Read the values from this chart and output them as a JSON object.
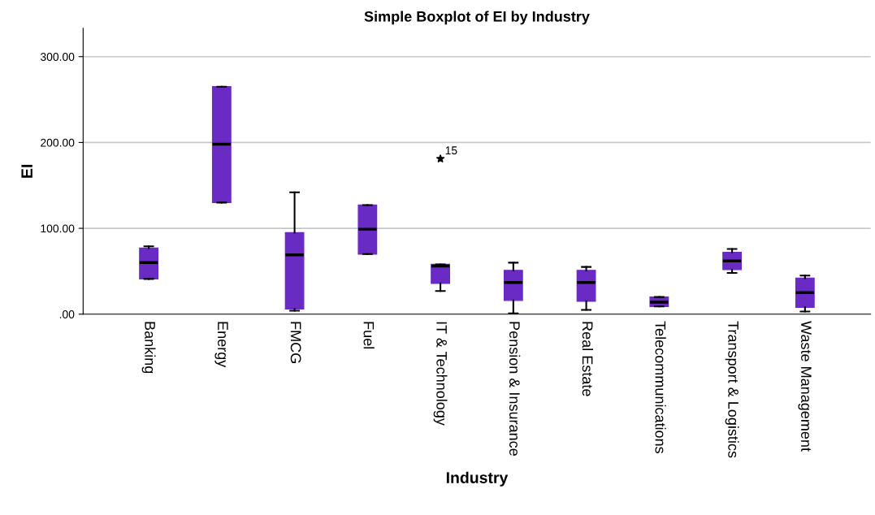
{
  "chart_data": {
    "type": "box",
    "title": "Simple Boxplot of EI by Industry",
    "xlabel": "Industry",
    "ylabel": "EI",
    "categories": [
      "Banking",
      "Energy",
      "FMCG",
      "Fuel",
      "IT & Technology",
      "Pension & Insurance",
      "Real Estate",
      "Telecommunications",
      "Transport & Logistics",
      "Waste Management"
    ],
    "boxes": [
      {
        "low": 41,
        "q1": 41,
        "median": 60,
        "q3": 77,
        "high": 79
      },
      {
        "low": 130,
        "q1": 130,
        "median": 198,
        "q3": 265,
        "high": 265
      },
      {
        "low": 4,
        "q1": 6,
        "median": 69,
        "q3": 95,
        "high": 142
      },
      {
        "low": 70,
        "q1": 70,
        "median": 99,
        "q3": 127,
        "high": 127
      },
      {
        "low": 27,
        "q1": 36,
        "median": 56,
        "q3": 58,
        "high": 58,
        "outliers": [
          181
        ]
      },
      {
        "low": 1,
        "q1": 16,
        "median": 37,
        "q3": 51,
        "high": 60
      },
      {
        "low": 5,
        "q1": 15,
        "median": 37,
        "q3": 51,
        "high": 55
      },
      {
        "low": 9,
        "q1": 9,
        "median": 14,
        "q3": 20,
        "high": 20
      },
      {
        "low": 48,
        "q1": 52,
        "median": 62,
        "q3": 72,
        "high": 76
      },
      {
        "low": 3,
        "q1": 8,
        "median": 25,
        "q3": 42,
        "high": 45
      }
    ],
    "color": "#6a2bc4",
    "marker": "star",
    "ylim": [
      0,
      333
    ],
    "yticks": [
      {
        "value": 0,
        "label": ".00"
      },
      {
        "value": 100,
        "label": "100.00"
      },
      {
        "value": 200,
        "label": "200.00"
      },
      {
        "value": 300,
        "label": "300.00"
      }
    ],
    "grid": "y",
    "annotations": [
      "15"
    ]
  }
}
